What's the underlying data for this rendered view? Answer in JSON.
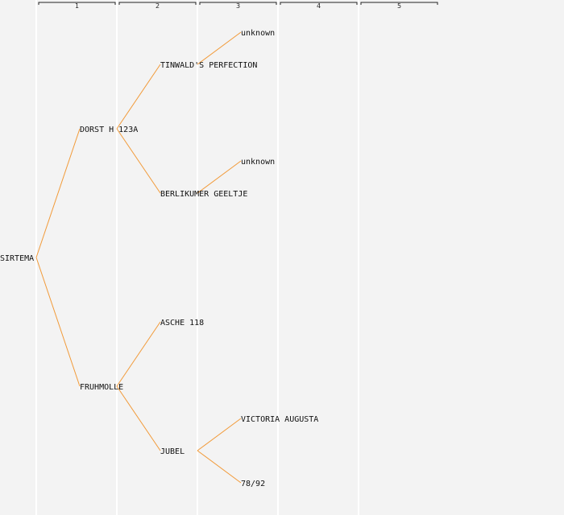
{
  "generations": [
    "1",
    "2",
    "3",
    "4",
    "5"
  ],
  "colors": {
    "background": "#f3f3f3",
    "edge": "#f29a38",
    "column_line": "#ffffff",
    "text": "#111111"
  },
  "tree": {
    "name": "SIRTEMA",
    "children": [
      {
        "name": "DORST H 123A",
        "children": [
          {
            "name": "TINWALD'S PERFECTION",
            "children": [
              {
                "name": "unknown"
              }
            ]
          },
          {
            "name": "BERLIKUMER GEELTJE",
            "children": [
              {
                "name": "unknown"
              }
            ]
          }
        ]
      },
      {
        "name": "FRUHMOLLE",
        "children": [
          {
            "name": "ASCHE 118"
          },
          {
            "name": "JUBEL",
            "children": [
              {
                "name": "VICTORIA AUGUSTA"
              },
              {
                "name": "78/92"
              }
            ]
          }
        ]
      }
    ]
  }
}
